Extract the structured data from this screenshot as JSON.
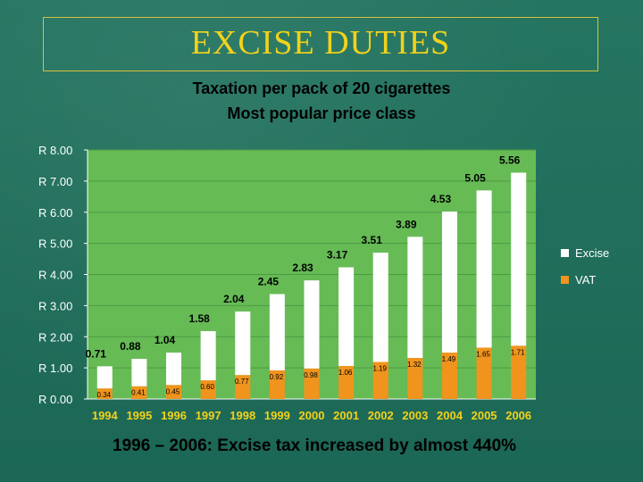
{
  "slide": {
    "title": "EXCISE DUTIES",
    "chart_title_line1": "Taxation per pack of 20 cigarettes",
    "chart_title_line2": "Most popular price class",
    "footer": "1996 – 2006: Excise tax increased by almost 440%"
  },
  "colors": {
    "excise": "#ffffff",
    "vat": "#f0941e",
    "plot_bg": "#66bb55",
    "title": "#f2d21b"
  },
  "chart_data": {
    "type": "bar",
    "stacked": true,
    "title": "Taxation per pack of 20 cigarettes / Most popular price class",
    "categories": [
      "1994",
      "1995",
      "1996",
      "1997",
      "1998",
      "1999",
      "2000",
      "2001",
      "2002",
      "2003",
      "2004",
      "2005",
      "2006"
    ],
    "series": [
      {
        "name": "VAT",
        "values": [
          0.34,
          0.41,
          0.45,
          0.6,
          0.77,
          0.92,
          0.98,
          1.06,
          1.19,
          1.32,
          1.49,
          1.65,
          1.71
        ],
        "labels": [
          "0.34",
          "0.41",
          "0.45",
          "0.60",
          "0.77",
          "0.92",
          "0.98",
          "1.06",
          "1.19",
          "1.32",
          "1.49",
          "1.65",
          "1.71"
        ]
      },
      {
        "name": "Excise",
        "values": [
          0.71,
          0.88,
          1.04,
          1.58,
          2.04,
          2.45,
          2.83,
          3.17,
          3.51,
          3.89,
          4.53,
          5.05,
          5.56
        ],
        "labels": [
          "0.71",
          "0.88",
          "1.04",
          "1.58",
          "2.04",
          "2.45",
          "2.83",
          "3.17",
          "3.51",
          "3.89",
          "4.53",
          "5.05",
          "5.56"
        ]
      }
    ],
    "y_ticks": [
      0,
      1,
      2,
      3,
      4,
      5,
      6,
      7,
      8
    ],
    "y_tick_labels": [
      "R 0.00",
      "R 1.00",
      "R 2.00",
      "R 3.00",
      "R 4.00",
      "R 5.00",
      "R 6.00",
      "R 7.00",
      "R 8.00"
    ],
    "ylim": [
      0,
      8
    ],
    "legend": [
      "Excise",
      "VAT"
    ],
    "legend_position": "right"
  }
}
